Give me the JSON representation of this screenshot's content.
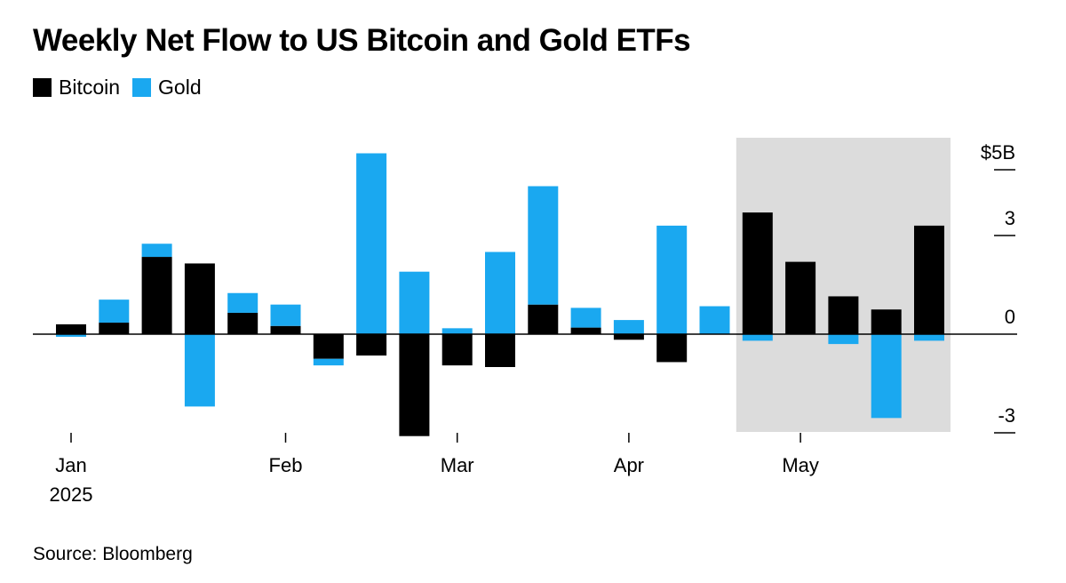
{
  "title": "Weekly Net Flow to US Bitcoin and Gold ETFs",
  "source": "Source: Bloomberg",
  "colors": {
    "bitcoin": "#000000",
    "gold": "#1aa8f0",
    "highlight": "#dcdcdc",
    "axis": "#000000"
  },
  "chart_data": {
    "type": "bar",
    "stacked": true,
    "unit": "$B",
    "ylim": [
      -3.2,
      6
    ],
    "yticks": [
      {
        "value": 5,
        "label": "$5B"
      },
      {
        "value": 3,
        "label": "3"
      },
      {
        "value": 0,
        "label": "0"
      },
      {
        "value": -3,
        "label": "-3"
      }
    ],
    "x_labels": [
      {
        "week": 0,
        "label": "Jan",
        "sublabel": "2025"
      },
      {
        "week": 5,
        "label": "Feb",
        "sublabel": ""
      },
      {
        "week": 9,
        "label": "Mar",
        "sublabel": ""
      },
      {
        "week": 13,
        "label": "Apr",
        "sublabel": ""
      },
      {
        "week": 17,
        "label": "May",
        "sublabel": ""
      }
    ],
    "highlight_range": {
      "from_week": 16,
      "to_week": 20
    },
    "legend_position": "top-left",
    "series": [
      {
        "name": "Bitcoin",
        "color": "#000000",
        "values": [
          0.3,
          0.35,
          2.35,
          2.15,
          0.65,
          0.25,
          -0.75,
          -0.65,
          -3.1,
          -0.95,
          -1.0,
          0.9,
          0.2,
          -0.17,
          -0.85,
          0.0,
          3.7,
          2.2,
          1.15,
          0.75,
          3.3
        ]
      },
      {
        "name": "Gold",
        "color": "#1aa8f0",
        "values": [
          -0.08,
          0.7,
          0.4,
          -2.2,
          0.6,
          0.65,
          -0.2,
          5.5,
          1.9,
          0.18,
          2.5,
          3.6,
          0.6,
          0.43,
          3.3,
          0.85,
          -0.2,
          0.0,
          -0.3,
          -2.55,
          -0.2
        ]
      }
    ]
  }
}
